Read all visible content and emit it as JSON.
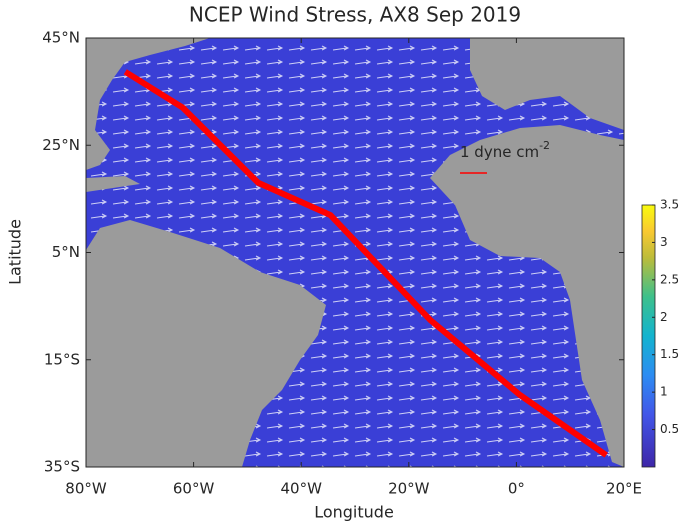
{
  "chart_data": {
    "type": "map",
    "title": "NCEP Wind Stress, AX8 Sep 2019",
    "xlabel": "Longitude",
    "ylabel": "Latitude",
    "xlim": [
      -80,
      20
    ],
    "xticks": [
      {
        "value": -80,
        "label": "80°W"
      },
      {
        "value": -60,
        "label": "60°W"
      },
      {
        "value": -40,
        "label": "40°W"
      },
      {
        "value": -20,
        "label": "20°W"
      },
      {
        "value": 0,
        "label": "0°"
      },
      {
        "value": 20,
        "label": "20°E"
      }
    ],
    "ylim": [
      -35,
      45
    ],
    "yticks": [
      {
        "value": -35,
        "label": "35°S"
      },
      {
        "value": -15,
        "label": "15°S"
      },
      {
        "value": 5,
        "label": "5°N"
      },
      {
        "value": 25,
        "label": "25°N"
      },
      {
        "value": 45,
        "label": "45°N"
      }
    ],
    "annotation": "1 dyne cm",
    "annotation_superscript": "-2",
    "track": {
      "color": "#ff0000",
      "lon": [
        -72.7,
        -62,
        -48,
        -34.6,
        -16,
        0.7,
        16.7
      ],
      "lat": [
        38.7,
        32,
        18,
        12,
        -7.6,
        -21.6,
        -32.8
      ]
    },
    "clim": [
      0,
      3.5
    ],
    "colorbar_ticks": [
      0.5,
      1,
      1.5,
      2,
      2.5,
      3,
      3.5
    ]
  }
}
